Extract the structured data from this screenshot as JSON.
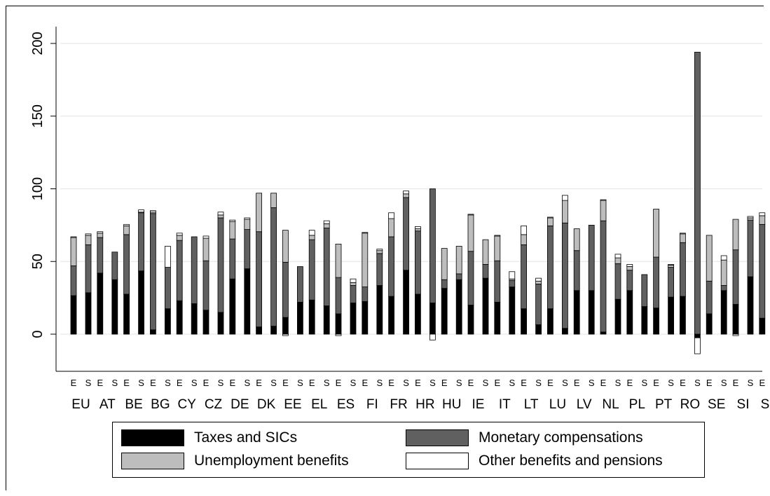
{
  "chart_data": {
    "type": "bar",
    "stacked": true,
    "title": "",
    "xlabel": "",
    "ylabel": "",
    "ylim": [
      -20,
      210
    ],
    "yticks": [
      0,
      50,
      100,
      150,
      200
    ],
    "grid": true,
    "legend_position": "bottom",
    "bar_sublabels": [
      "E",
      "S"
    ],
    "countries": [
      "EU",
      "AT",
      "BE",
      "BG",
      "CY",
      "CZ",
      "DE",
      "DK",
      "EE",
      "EL",
      "ES",
      "FI",
      "FR",
      "HR",
      "HU",
      "IE",
      "IT",
      "LT",
      "LU",
      "LV",
      "NL",
      "PL",
      "PT",
      "RO",
      "SE",
      "SI",
      "SK"
    ],
    "series": [
      {
        "name": "Taxes and SICs",
        "color": "#000000",
        "E": [
          26.5,
          42,
          27.5,
          3,
          23,
          16.5,
          38,
          5,
          11.5,
          23.5,
          14,
          22.5,
          26,
          27.5,
          31.5,
          20,
          22,
          17.5,
          17.5,
          30,
          1.5,
          30,
          18,
          26,
          14,
          20.5,
          11
        ],
        "S": [
          28.5,
          37.5,
          43.5,
          17.5,
          21,
          15,
          45,
          5.5,
          22,
          19.5,
          21.5,
          33.5,
          44,
          21.5,
          37.5,
          38.5,
          32.5,
          6.5,
          4,
          30,
          24,
          19,
          25.5,
          -2.5,
          30,
          39.5,
          31
        ]
      },
      {
        "name": "Monetary compensations",
        "color": "#606060",
        "E": [
          20.5,
          24.5,
          41,
          80,
          41.5,
          34,
          27.5,
          65.5,
          38,
          41.5,
          25,
          10,
          41,
          43.5,
          6,
          37,
          28.5,
          44,
          57,
          27.5,
          76.5,
          14,
          35,
          37,
          22.5,
          37.5,
          64.5
        ],
        "S": [
          33,
          19,
          40,
          28.5,
          46,
          65,
          27,
          81.5,
          24.5,
          53.5,
          12,
          22,
          50,
          78.5,
          4,
          9.5,
          4.5,
          28,
          72.5,
          45,
          24.5,
          22,
          20.5,
          194,
          3.5,
          39,
          75.5
        ]
      },
      {
        "name": "Unemployment benefits",
        "color": "#bdbdbd",
        "E": [
          19.5,
          3,
          6,
          1,
          3.5,
          15.5,
          12,
          26.5,
          22,
          3,
          23,
          37,
          12.5,
          1.5,
          21.5,
          25,
          17,
          7,
          5.5,
          15,
          14,
          2.5,
          33,
          6,
          31.5,
          21,
          6
        ],
        "S": [
          6.5,
          0,
          0.5,
          0,
          0,
          2,
          7,
          10,
          0,
          3,
          2,
          2,
          2.5,
          0,
          19,
          17,
          1,
          2,
          15.5,
          0,
          4,
          0,
          1.5,
          0,
          17.5,
          1.5,
          0
        ]
      },
      {
        "name": "Other benefits and pensions",
        "color": "#ffffff",
        "E": [
          0.5,
          1,
          1,
          1,
          1.5,
          1.5,
          1,
          0,
          -1,
          3.5,
          -1,
          0.5,
          4,
          1.5,
          0,
          0.5,
          0.5,
          6,
          0.5,
          0,
          0.5,
          1.5,
          0,
          0.5,
          0,
          -1,
          2
        ],
        "S": [
          1,
          0,
          1.5,
          14.5,
          0,
          2,
          1,
          0,
          0,
          2,
          2.5,
          1,
          2,
          -4,
          0,
          0,
          5,
          2,
          3.5,
          0,
          2.5,
          0,
          0.5,
          -11,
          3,
          1,
          2
        ]
      }
    ]
  },
  "legend": {
    "taxes": "Taxes and SICs",
    "monetary": "Monetary compensations",
    "unemployment": "Unemployment benefits",
    "other": "Other benefits and pensions"
  }
}
